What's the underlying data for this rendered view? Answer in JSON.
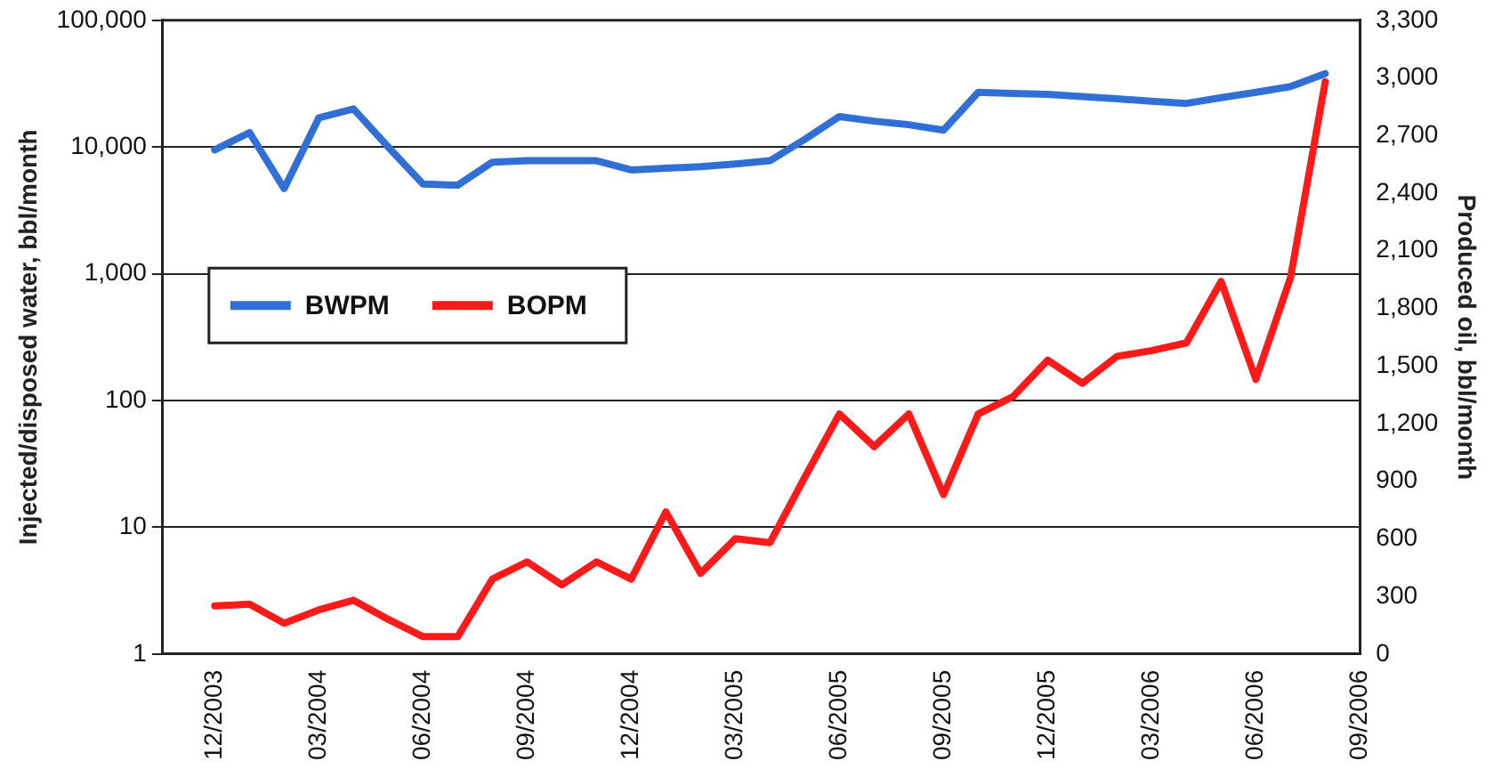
{
  "chart_data": {
    "type": "line",
    "ylabel": "Injected/disposed water, bbl/month",
    "y2label": "Produced oil, bbl/month",
    "categories": [
      "12/2003",
      null,
      null,
      "03/2004",
      null,
      null,
      "06/2004",
      null,
      null,
      "09/2004",
      null,
      null,
      "12/2004",
      null,
      null,
      "03/2005",
      null,
      null,
      "06/2005",
      null,
      null,
      "09/2005",
      null,
      null,
      "12/2005",
      null,
      null,
      "03/2006",
      null,
      null,
      "06/2006",
      null,
      null,
      "09/2006"
    ],
    "series": [
      {
        "name": "BWPM",
        "color": "#2f6fd6",
        "axis": "y",
        "values": [
          9500,
          13000,
          4700,
          17000,
          20000,
          10000,
          5100,
          5000,
          7600,
          7800,
          7800,
          7800,
          6600,
          6800,
          7000,
          7350,
          7800,
          11500,
          17400,
          16000,
          15000,
          13600,
          27000,
          26500,
          26000,
          25000,
          24000,
          23000,
          22100,
          24500,
          27000,
          30000,
          38000,
          null
        ]
      },
      {
        "name": "BOPM",
        "color": "#ff1a1a",
        "axis": "y2",
        "values": [
          250,
          260,
          160,
          230,
          280,
          180,
          90,
          90,
          390,
          480,
          360,
          480,
          390,
          740,
          420,
          600,
          580,
          920,
          1250,
          1080,
          1250,
          830,
          1250,
          1340,
          1530,
          1410,
          1550,
          1580,
          1620,
          1940,
          1430,
          1960,
          2980,
          null
        ]
      }
    ],
    "log": "y",
    "ylim": [
      1,
      100000
    ],
    "yticks": [
      1,
      10,
      100,
      {
        "value": 1000,
        "label": "1,000"
      },
      {
        "value": 10000,
        "label": "10,000"
      },
      {
        "value": 100000,
        "label": "100,000"
      }
    ],
    "y2lim": [
      0,
      3300
    ],
    "y2ticks": [
      0,
      300,
      600,
      900,
      {
        "value": 1200,
        "label": "1,200"
      },
      {
        "value": 1500,
        "label": "1,500"
      },
      {
        "value": 1800,
        "label": "1,800"
      },
      {
        "value": 2100,
        "label": "2,100"
      },
      {
        "value": 2400,
        "label": "2,400"
      },
      {
        "value": 2700,
        "label": "2,700"
      },
      {
        "value": 3000,
        "label": "3,000"
      },
      {
        "value": 3300,
        "label": "3,300"
      }
    ],
    "grid": "y",
    "legend": "left",
    "marker": "none",
    "line_style": "solid"
  }
}
